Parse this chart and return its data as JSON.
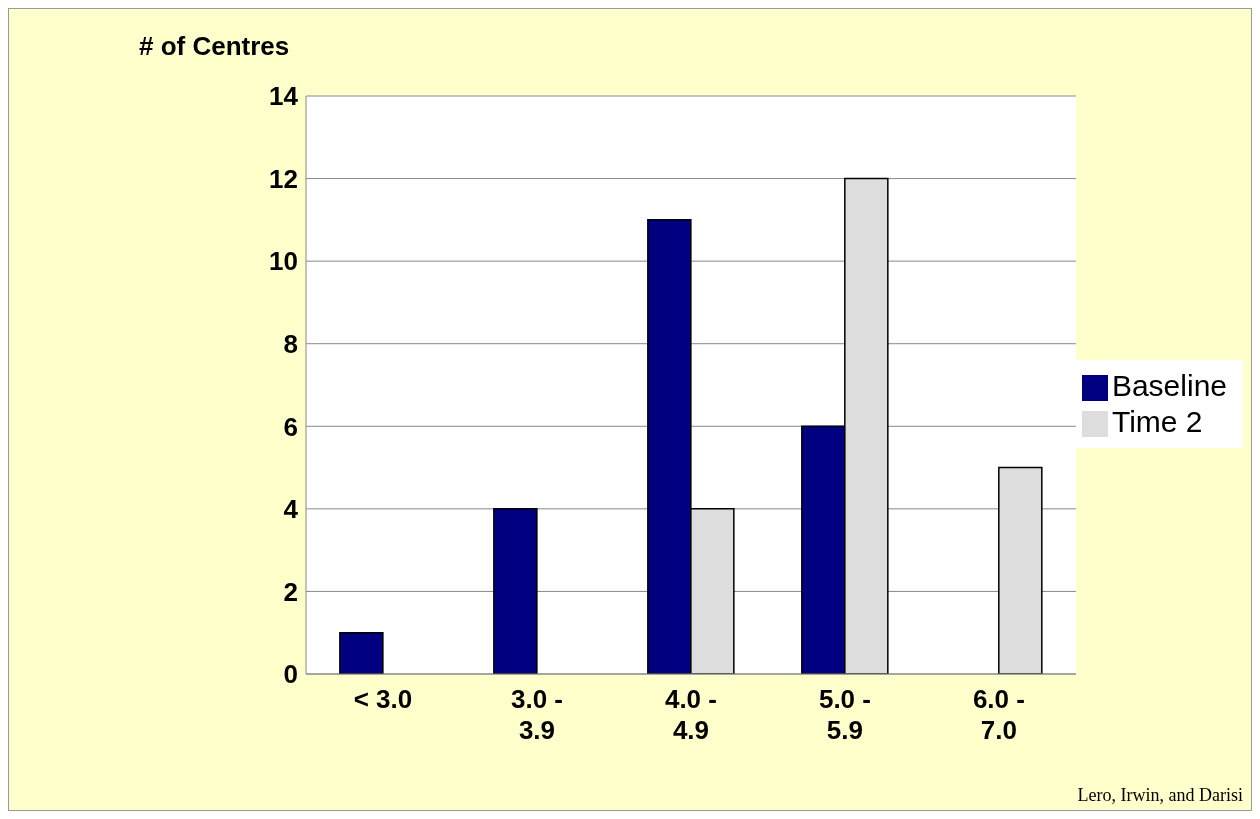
{
  "chart_data": {
    "type": "bar",
    "ylabel": "# of Centres",
    "categories": [
      "< 3.0",
      "3.0 - 3.9",
      "4.0 - 4.9",
      "5.0 - 5.9",
      "6.0 - 7.0"
    ],
    "series": [
      {
        "name": "Baseline",
        "color": "#000080",
        "values": [
          1,
          4,
          11,
          6,
          0
        ]
      },
      {
        "name": "Time 2",
        "color": "#dddddd",
        "values": [
          0,
          0,
          4,
          12,
          5
        ]
      }
    ],
    "ylim": [
      0,
      14
    ],
    "yticks": [
      0,
      2,
      4,
      6,
      8,
      10,
      12,
      14
    ],
    "grid": "y",
    "legend": "right",
    "annotations": [
      "Lero, Irwin, and Darisi"
    ]
  }
}
